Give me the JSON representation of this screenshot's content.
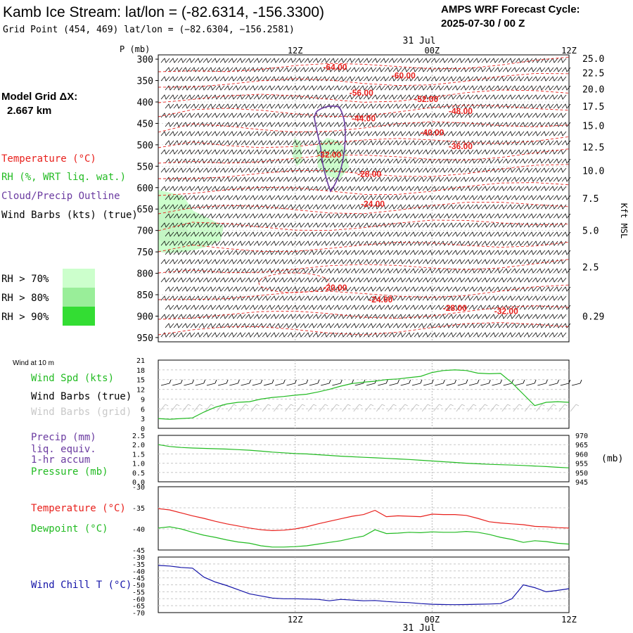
{
  "header": {
    "title": "Kamb Ice Stream:  lat/lon = (-82.6314, -156.3300)",
    "subtitle": "Grid Point (454, 469) lat/lon = (−82.6304, −156.2581)",
    "cycle_label": "AMPS WRF Forecast Cycle:",
    "cycle_value": "2025-07-30 / 00  Z"
  },
  "grid_info": {
    "label": "Model Grid ΔX:",
    "value": "2.667 km"
  },
  "time_axis": {
    "ticks": [
      {
        "x": 12,
        "label": "12Z"
      },
      {
        "x": 24,
        "label": "00Z"
      },
      {
        "x": 36,
        "label": "12Z"
      }
    ],
    "date_label": "31 Jul",
    "range": [
      0,
      36
    ]
  },
  "legend_left": {
    "temperature": "Temperature (°C)",
    "rh": "RH (%, WRT liq. wat.)",
    "cloud": "Cloud/Precip Outline",
    "wind_barbs": "Wind Barbs (kts) (true)",
    "rh_levels": [
      "RH > 70%",
      "RH > 80%",
      "RH > 90%"
    ]
  },
  "colors": {
    "temperature": "#e8201c",
    "rh70": "#ccffcc",
    "rh80": "#99ee99",
    "rh90": "#33dd33",
    "cloud": "#6a3aa0",
    "green": "#22bb22",
    "blue": "#1414a8",
    "grid": "#b8b8b8"
  },
  "chart_data": [
    {
      "type": "contour",
      "name": "upper-air cross section",
      "y_axis_label": "P (mb)",
      "y_ticks": [
        300,
        350,
        400,
        450,
        500,
        550,
        600,
        650,
        700,
        750,
        800,
        850,
        900,
        950
      ],
      "y_range": [
        290,
        960
      ],
      "right_axis_label": "Kft MSL",
      "right_ticks": [
        {
          "p": 298,
          "label": "25.0"
        },
        {
          "p": 332,
          "label": "22.5"
        },
        {
          "p": 370,
          "label": "20.0"
        },
        {
          "p": 410,
          "label": "17.5"
        },
        {
          "p": 455,
          "label": "15.0"
        },
        {
          "p": 505,
          "label": "12.5"
        },
        {
          "p": 560,
          "label": "10.0"
        },
        {
          "p": 625,
          "label": "7.5"
        },
        {
          "p": 700,
          "label": "5.0"
        },
        {
          "p": 785,
          "label": "2.5"
        },
        {
          "p": 900,
          "label": "0.29"
        }
      ],
      "temp_labels": [
        {
          "label": "-64.00",
          "t": 15.5,
          "p": 325
        },
        {
          "label": "-60.00",
          "t": 21.5,
          "p": 345
        },
        {
          "label": "-56.00",
          "t": 17.8,
          "p": 385
        },
        {
          "label": "-52.00",
          "t": 23.5,
          "p": 400
        },
        {
          "label": "-48.00",
          "t": 26.5,
          "p": 428
        },
        {
          "label": "-44.00",
          "t": 18.0,
          "p": 445
        },
        {
          "label": "-40.00",
          "t": 24.0,
          "p": 478
        },
        {
          "label": "-36.00",
          "t": 26.5,
          "p": 510
        },
        {
          "label": "-32.00",
          "t": 15.0,
          "p": 530
        },
        {
          "label": "-28.00",
          "t": 18.5,
          "p": 575
        },
        {
          "label": "-24.00",
          "t": 18.8,
          "p": 645
        },
        {
          "label": "-20.00",
          "t": 15.5,
          "p": 840
        },
        {
          "label": "-24.00",
          "t": 19.5,
          "p": 868
        },
        {
          "label": "-28.00",
          "t": 26.0,
          "p": 888
        },
        {
          "label": "-32.00",
          "t": 30.5,
          "p": 895
        }
      ]
    },
    {
      "type": "line",
      "name": "wind at 10 m",
      "panel_label": "Wind at 10 m",
      "labels": [
        "Wind Spd (kts)",
        "Wind Barbs (true)",
        "Wind Barbs (grid)"
      ],
      "y_ticks": [
        0,
        3,
        6,
        9,
        12,
        15,
        18,
        21
      ],
      "y_range": [
        0,
        21
      ],
      "x": [
        0,
        1,
        2,
        3,
        4,
        5,
        6,
        7,
        8,
        9,
        10,
        11,
        12,
        13,
        14,
        15,
        16,
        17,
        18,
        19,
        20,
        21,
        22,
        23,
        24,
        25,
        26,
        27,
        28,
        29,
        30,
        31,
        32,
        33,
        34,
        35,
        36
      ],
      "values": [
        3,
        2.8,
        3,
        3.2,
        5,
        6.5,
        7.5,
        8,
        8.2,
        9,
        9.5,
        9.8,
        10.2,
        10.5,
        11.2,
        12,
        13,
        13.8,
        14.2,
        14.5,
        15,
        15.2,
        15.6,
        16,
        17.2,
        17.8,
        18,
        17.8,
        17,
        16.8,
        16.9,
        14,
        10.5,
        7,
        8,
        8.2,
        8
      ]
    },
    {
      "type": "line",
      "name": "precip and pressure",
      "labels": [
        "Precip (mm)",
        "liq. equiv.",
        "1-hr accum",
        "Pressure (mb)"
      ],
      "left_ticks": [
        0.0,
        0.5,
        1.0,
        1.5,
        2.0,
        2.5
      ],
      "left_range": [
        0,
        2.5
      ],
      "right_ticks": [
        945,
        950,
        955,
        960,
        965,
        970
      ],
      "right_range": [
        945,
        970
      ],
      "right_unit": "(mb)",
      "x": [
        0,
        1,
        2,
        3,
        4,
        5,
        6,
        7,
        8,
        9,
        10,
        11,
        12,
        13,
        14,
        15,
        16,
        17,
        18,
        19,
        20,
        21,
        22,
        23,
        24,
        25,
        26,
        27,
        28,
        29,
        30,
        31,
        32,
        33,
        34,
        35,
        36
      ],
      "pressure": [
        965,
        964,
        963.5,
        963.2,
        963,
        962.8,
        962.6,
        962.3,
        962,
        961.5,
        961,
        960.6,
        960.2,
        960,
        959.6,
        959.2,
        958.8,
        958.5,
        958.2,
        957.9,
        957.6,
        957.3,
        957,
        956.6,
        956.2,
        955.8,
        955.4,
        955,
        954.7,
        954.4,
        954.2,
        954,
        953.8,
        953.5,
        953.2,
        952.8,
        952.5
      ]
    },
    {
      "type": "line",
      "name": "temperature and dewpoint",
      "labels": [
        "Temperature (°C)",
        "Dewpoint (°C)"
      ],
      "y_ticks": [
        -30,
        -35,
        -40,
        -45
      ],
      "y_range": [
        -45,
        -30
      ],
      "x": [
        0,
        1,
        2,
        3,
        4,
        5,
        6,
        7,
        8,
        9,
        10,
        11,
        12,
        13,
        14,
        15,
        16,
        17,
        18,
        19,
        20,
        21,
        22,
        23,
        24,
        25,
        26,
        27,
        28,
        29,
        30,
        31,
        32,
        33,
        34,
        35,
        36
      ],
      "temperature": [
        -35.2,
        -35.5,
        -36.2,
        -36.9,
        -37.5,
        -38.2,
        -38.8,
        -39.3,
        -39.8,
        -40.2,
        -40.4,
        -40.3,
        -40,
        -39.5,
        -38.8,
        -38.2,
        -37.6,
        -37,
        -36.6,
        -35.6,
        -37.1,
        -36.9,
        -37,
        -37.1,
        -36.5,
        -36.6,
        -36.6,
        -36.8,
        -37.5,
        -38.3,
        -38.6,
        -38.8,
        -39,
        -39.4,
        -39.5,
        -39.7,
        -39.8
      ],
      "dewpoint": [
        -39.8,
        -39.5,
        -40,
        -40.8,
        -41.5,
        -42,
        -42.6,
        -43.1,
        -43.4,
        -44,
        -44.3,
        -44.3,
        -44.2,
        -44,
        -43.6,
        -43.2,
        -42.8,
        -42.2,
        -41.7,
        -40.2,
        -41.1,
        -41,
        -40.8,
        -40.9,
        -40.7,
        -40.8,
        -40.8,
        -40.6,
        -40.8,
        -41.3,
        -42,
        -42.5,
        -43.2,
        -42.8,
        -43,
        -43.4,
        -43.6
      ]
    },
    {
      "type": "line",
      "name": "wind chill",
      "labels": [
        "Wind Chill T (°C)"
      ],
      "y_ticks": [
        -30,
        -35,
        -40,
        -45,
        -50,
        -55,
        -60,
        -65,
        -70
      ],
      "y_range": [
        -70,
        -30
      ],
      "x": [
        0,
        1,
        2,
        3,
        4,
        5,
        6,
        7,
        8,
        9,
        10,
        11,
        12,
        13,
        14,
        15,
        16,
        17,
        18,
        19,
        20,
        21,
        22,
        23,
        24,
        25,
        26,
        27,
        28,
        29,
        30,
        31,
        32,
        33,
        34,
        35,
        36
      ],
      "values": [
        -36,
        -36.5,
        -37.5,
        -38,
        -44.5,
        -48,
        -50.5,
        -53.5,
        -56.5,
        -58,
        -59.5,
        -60,
        -60,
        -60.3,
        -60.5,
        -61.5,
        -60.5,
        -61,
        -61.5,
        -61.3,
        -62,
        -62.5,
        -62.8,
        -63.5,
        -64,
        -64.2,
        -64.3,
        -64.2,
        -64,
        -63.8,
        -63.5,
        -60,
        -50,
        -52,
        -55,
        -54,
        -52.8
      ]
    }
  ]
}
